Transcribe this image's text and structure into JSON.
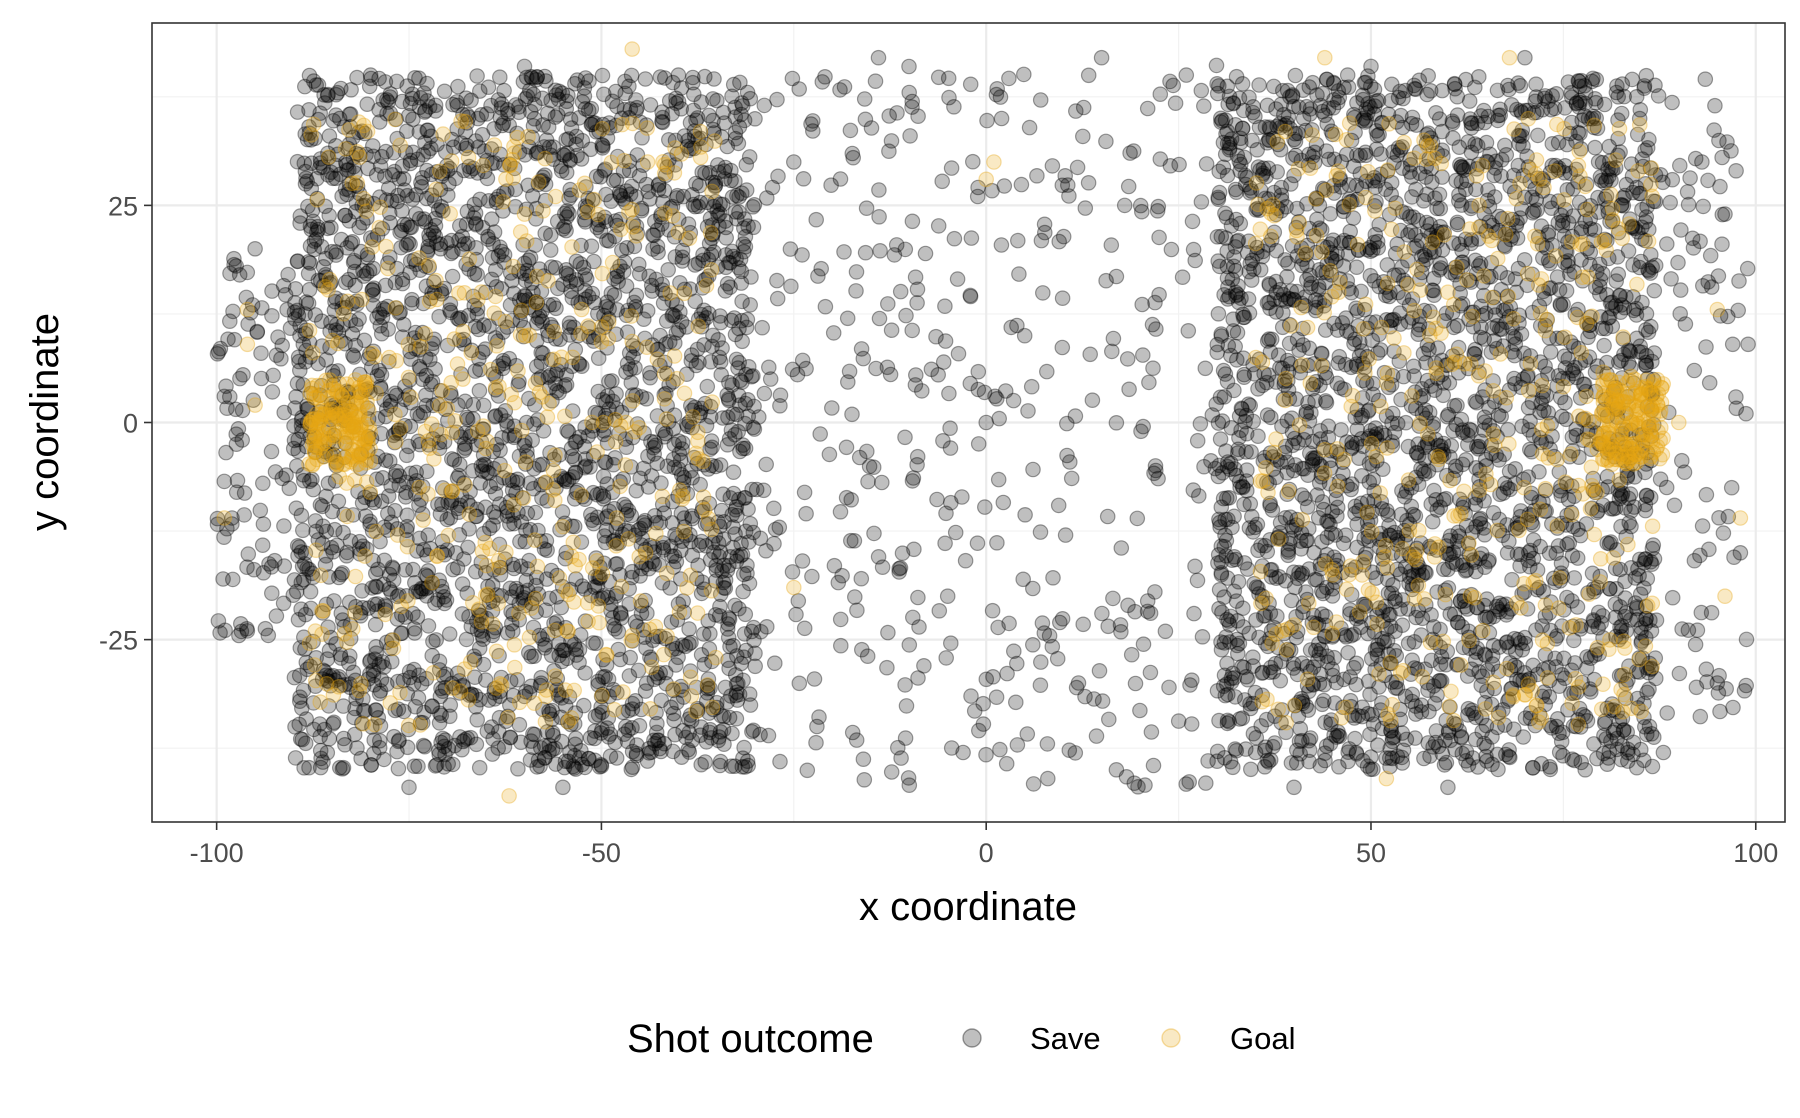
{
  "chart_data": {
    "type": "scatter",
    "title": "",
    "xlabel": "x coordinate",
    "ylabel": "y coordinate",
    "xlim": [
      -108.4,
      103.8
    ],
    "ylim": [
      -46.0,
      46.0
    ],
    "x_ticks": [
      -100,
      -50,
      0,
      50,
      100
    ],
    "x_tick_labels": [
      "-100",
      "-50",
      "0",
      "50",
      "100"
    ],
    "y_ticks": [
      -25,
      0,
      25
    ],
    "y_tick_labels": [
      "-25",
      "0",
      "25"
    ],
    "grid": true,
    "theme": "black-and-white",
    "point_opacity": 0.25,
    "legend": {
      "position": "bottom",
      "title": "Shot outcome",
      "entries": [
        {
          "label": "Save",
          "color": "#000000"
        },
        {
          "label": "Goal",
          "color": "#E7A614"
        }
      ]
    },
    "series": [
      {
        "name": "Save",
        "color": "#000000",
        "description_regions": [
          {
            "x": [
              -90,
              -30
            ],
            "y": [
              -40,
              40
            ],
            "density": "very high"
          },
          {
            "x": [
              30,
              87
            ],
            "y": [
              -40,
              40
            ],
            "density": "very high"
          },
          {
            "x": [
              -30,
              30
            ],
            "y": [
              -42,
              42
            ],
            "density": "moderate"
          },
          {
            "x": [
              -100,
              -90
            ],
            "y": [
              -25,
              20
            ],
            "density": "low"
          },
          {
            "x": [
              87,
              99
            ],
            "y": [
              -35,
              40
            ],
            "density": "low"
          }
        ],
        "points": [
          [
            -99,
            3
          ],
          [
            -98,
            -11
          ],
          [
            -97,
            17
          ],
          [
            -96,
            -24
          ],
          [
            -95,
            20
          ],
          [
            -94,
            -7
          ],
          [
            97,
            9
          ],
          [
            98,
            -15
          ],
          [
            96,
            24
          ],
          [
            95,
            -30
          ],
          [
            99,
            9
          ],
          [
            93,
            30
          ],
          [
            -88,
            36
          ],
          [
            -80,
            40
          ],
          [
            -60,
            41
          ],
          [
            -40,
            40
          ],
          [
            -31,
            38
          ],
          [
            -31,
            -39
          ],
          [
            -55,
            -42
          ],
          [
            -75,
            -42
          ],
          [
            30,
            39
          ],
          [
            30,
            -39
          ],
          [
            50,
            41
          ],
          [
            70,
            42
          ],
          [
            85,
            36
          ],
          [
            88,
            -38
          ],
          [
            60,
            -42
          ],
          [
            40,
            -42
          ],
          [
            -25,
            30
          ],
          [
            -18,
            12
          ],
          [
            -10,
            38
          ],
          [
            -5,
            -20
          ],
          [
            0,
            0
          ],
          [
            5,
            10
          ],
          [
            12,
            -30
          ],
          [
            18,
            25
          ],
          [
            22,
            -5
          ],
          [
            26,
            40
          ],
          [
            -22,
            -35
          ],
          [
            8,
            -41
          ],
          [
            -14,
            42
          ],
          [
            15,
            42
          ],
          [
            -28,
            5
          ],
          [
            27,
            -22
          ],
          [
            2,
            35
          ],
          [
            -3,
            -38
          ]
        ]
      },
      {
        "name": "Goal",
        "color": "#E7A614",
        "description_regions": [
          {
            "x": [
              -88,
              -35
            ],
            "y": [
              -35,
              35
            ],
            "density": "moderate"
          },
          {
            "x": [
              35,
              87
            ],
            "y": [
              -35,
              35
            ],
            "density": "moderate"
          },
          {
            "x": [
              -88,
              -80
            ],
            "y": [
              -5,
              5
            ],
            "density": "high"
          },
          {
            "x": [
              80,
              88
            ],
            "y": [
              -5,
              5
            ],
            "density": "high"
          }
        ],
        "points": [
          [
            -99,
            -11
          ],
          [
            -96,
            9
          ],
          [
            -96,
            13
          ],
          [
            -95,
            2
          ],
          [
            -87,
            0
          ],
          [
            -86,
            1
          ],
          [
            -68,
            5
          ],
          [
            -65,
            -3
          ],
          [
            -60,
            24
          ],
          [
            -55,
            -12
          ],
          [
            -50,
            11
          ],
          [
            -44,
            30
          ],
          [
            -46,
            43
          ],
          [
            -62,
            -43
          ],
          [
            -25,
            -19
          ],
          [
            0,
            28
          ],
          [
            1,
            30
          ],
          [
            44,
            42
          ],
          [
            52,
            -41
          ],
          [
            68,
            42
          ],
          [
            78,
            3
          ],
          [
            80,
            1
          ],
          [
            84,
            0
          ],
          [
            90,
            0
          ],
          [
            96,
            -20
          ],
          [
            98,
            -11
          ],
          [
            95,
            13
          ],
          [
            60,
            15
          ],
          [
            72,
            -10
          ]
        ]
      }
    ]
  }
}
